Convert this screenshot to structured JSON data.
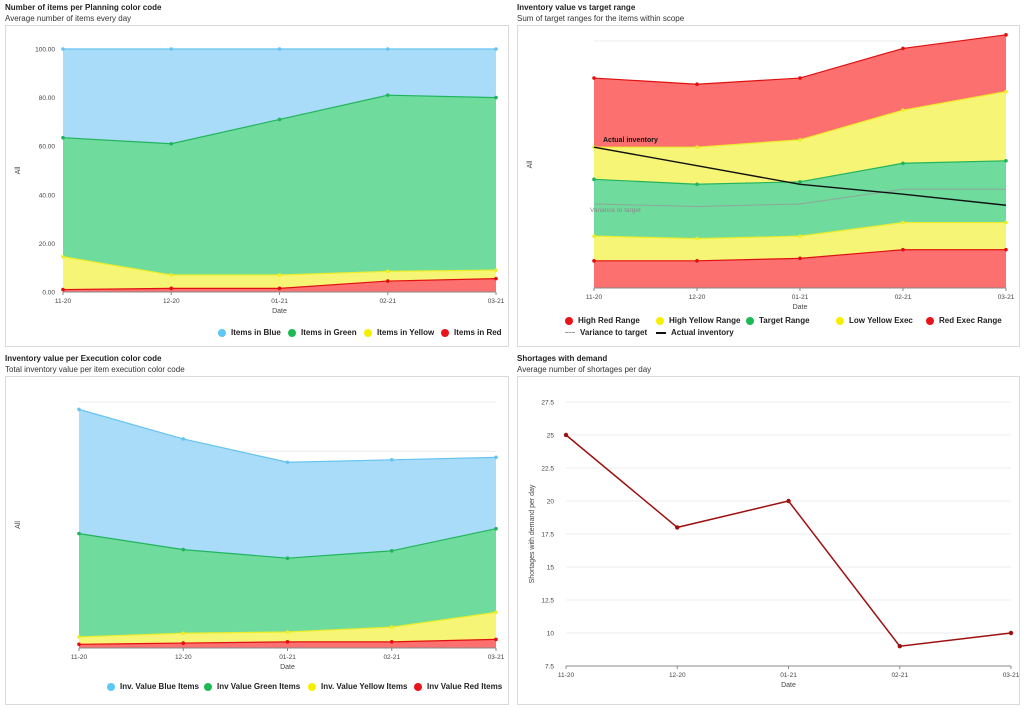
{
  "panels": [
    {
      "title": "Number of items per Planning color code",
      "subtitle": "Average number of items every day",
      "legend": [
        "Items in Blue",
        "Items in Green",
        "Items in Yellow",
        "Items in Red"
      ]
    },
    {
      "title": "Inventory value vs target range",
      "subtitle": "Sum of target ranges for the items within scope",
      "legend": [
        "High Red Range",
        "High Yellow Range",
        "Target Range",
        "Low Yellow Exec",
        "Red Exec Range",
        "Variance to target",
        "Actual inventory"
      ]
    },
    {
      "title": "Inventory value per Execution color code",
      "subtitle": "Total inventory value per item execution color code",
      "legend": [
        "Inv. Value Blue Items",
        "Inv Value Green Items",
        "Inv. Value Yellow Items",
        "Inv Value Red Items"
      ]
    },
    {
      "title": "Shortages with demand",
      "subtitle": "Average number of shortages per day",
      "legend": []
    }
  ],
  "colors": {
    "blue": "#a8dcf8",
    "blue_line": "#66c4ef",
    "green": "#6fdc9e",
    "green_line": "#22b45c",
    "yellow": "#f6f576",
    "yellow_line": "#eded2a",
    "red": "#fc7070",
    "red_line": "#e01010",
    "dark_red": "#9e1010",
    "black": "#111111",
    "grey": "#999999",
    "legend_blue": "#5bc8f5",
    "legend_green": "#1db954",
    "legend_yellow": "#f5f000",
    "legend_red": "#e8141b"
  },
  "chart_data": [
    {
      "type": "area",
      "stacked": true,
      "title": "",
      "xlabel": "Date",
      "ylabel": "All",
      "categories": [
        "11-20",
        "12-20",
        "01-21",
        "02-21",
        "03-21"
      ],
      "ylim": [
        0,
        100
      ],
      "yticks": [
        "0.00",
        "20.00",
        "40.00",
        "60.00",
        "80.00",
        "100.00"
      ],
      "series": [
        {
          "name": "Items in Red",
          "values": [
            1,
            1.5,
            1.5,
            4.5,
            5.5
          ]
        },
        {
          "name": "Items in Yellow",
          "values": [
            13.5,
            5.5,
            5.5,
            4,
            3.5
          ]
        },
        {
          "name": "Items in Green",
          "values": [
            49,
            54,
            64,
            72.5,
            71
          ]
        },
        {
          "name": "Items in Blue",
          "values": [
            36.5,
            39,
            29,
            19,
            20
          ]
        }
      ],
      "grid": true,
      "legend_position": "bottom-right"
    },
    {
      "type": "area",
      "stacked": true,
      "title": "",
      "xlabel": "Date",
      "ylabel": "All",
      "categories": [
        "11-20",
        "12-20",
        "01-21",
        "02-21",
        "03-21"
      ],
      "ylim": [
        0,
        100
      ],
      "series": [
        {
          "name": "Red Exec Range",
          "values": [
            11,
            11,
            12,
            15.5,
            15.5
          ]
        },
        {
          "name": "Low Yellow Exec",
          "values": [
            10,
            9,
            9,
            11,
            11
          ]
        },
        {
          "name": "Target Range",
          "values": [
            23,
            22,
            22,
            24,
            25
          ]
        },
        {
          "name": "High Yellow Range",
          "values": [
            13,
            15,
            17,
            21.5,
            28
          ]
        },
        {
          "name": "High Red Range",
          "values": [
            28,
            25.5,
            25,
            25,
            23
          ]
        }
      ],
      "lines": [
        {
          "name": "Actual inventory",
          "values": [
            57,
            49.5,
            42,
            38,
            33.5
          ]
        },
        {
          "name": "Variance to target",
          "values": [
            34,
            33,
            34,
            40,
            40
          ]
        }
      ],
      "annotations": [
        "Actual inventory",
        "Variance to target"
      ],
      "grid": true,
      "legend_position": "bottom"
    },
    {
      "type": "area",
      "stacked": true,
      "title": "",
      "xlabel": "Date",
      "ylabel": "All",
      "categories": [
        "11-20",
        "12-20",
        "01-21",
        "02-21",
        "03-21"
      ],
      "ylim": [
        0,
        100
      ],
      "series": [
        {
          "name": "Inv Value Red Items",
          "values": [
            1.5,
            2,
            2.5,
            2.5,
            3.5
          ]
        },
        {
          "name": "Inv. Value Yellow Items",
          "values": [
            3,
            4,
            4,
            6,
            11
          ]
        },
        {
          "name": "Inv Value Green Items",
          "values": [
            42,
            34,
            30,
            31,
            34
          ]
        },
        {
          "name": "Inv. Value Blue Items",
          "values": [
            50.5,
            45,
            39,
            37,
            29
          ]
        }
      ],
      "grid": true,
      "legend_position": "bottom"
    },
    {
      "type": "line",
      "title": "",
      "xlabel": "Date",
      "ylabel": "Shortages with demand per day",
      "categories": [
        "11-20",
        "12-20",
        "01-21",
        "02-21",
        "03-21"
      ],
      "series": [
        {
          "name": "",
          "values": [
            25,
            18,
            20,
            9,
            10
          ]
        }
      ],
      "ylim": [
        7.5,
        27.5
      ],
      "yticks": [
        "7.5",
        "10",
        "12.5",
        "15",
        "17.5",
        "20",
        "22.5",
        "25",
        "27.5"
      ],
      "grid": true
    }
  ]
}
